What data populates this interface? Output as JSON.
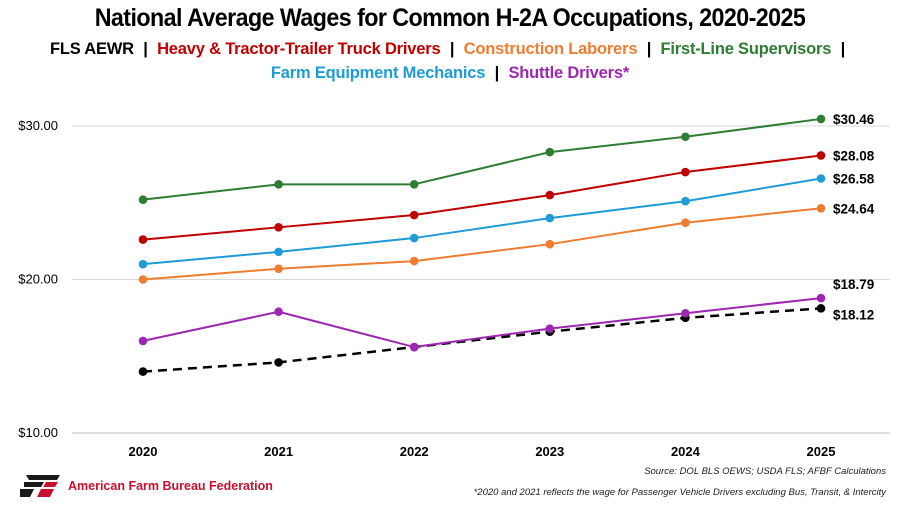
{
  "chart_data": {
    "type": "line",
    "title": "National Average Wages for Common H-2A Occupations, 2020-2025",
    "categories": [
      "2020",
      "2021",
      "2022",
      "2023",
      "2024",
      "2025"
    ],
    "ylim": [
      10,
      32
    ],
    "yticks": [
      10,
      20,
      30
    ],
    "ytick_labels": [
      "$10.00",
      "$20.00",
      "$30.00"
    ],
    "grid": true,
    "legend_placement": "top",
    "series": [
      {
        "name": "FLS AEWR",
        "color": "#000000",
        "dashed": true,
        "end_label": "$18.12",
        "values": [
          14.0,
          14.6,
          15.6,
          16.6,
          17.5,
          18.12
        ]
      },
      {
        "name": "Heavy & Tractor-Trailer Truck Drivers",
        "color": "#c00000",
        "dashed": false,
        "end_label": "$28.08",
        "values": [
          22.6,
          23.4,
          24.2,
          25.5,
          27.0,
          28.08
        ]
      },
      {
        "name": "Construction Laborers",
        "color": "#ed7d31",
        "dashed": false,
        "end_label": "$24.64",
        "values": [
          20.0,
          20.7,
          21.2,
          22.3,
          23.7,
          24.64
        ]
      },
      {
        "name": "First-Line Supervisors",
        "color": "#2e7d32",
        "dashed": false,
        "end_label": "$30.46",
        "values": [
          25.2,
          26.2,
          26.2,
          28.3,
          29.3,
          30.46
        ]
      },
      {
        "name": "Farm Equipment Mechanics",
        "color": "#1f9bd7",
        "dashed": false,
        "end_label": "$26.58",
        "values": [
          21.0,
          21.8,
          22.7,
          24.0,
          25.1,
          26.58
        ]
      },
      {
        "name": "Shuttle Drivers*",
        "color": "#9c27b0",
        "dashed": false,
        "end_label": "$18.79",
        "values": [
          16.0,
          17.9,
          15.6,
          16.8,
          17.8,
          18.79
        ]
      }
    ]
  },
  "legend": {
    "separator": "|",
    "line1": [
      {
        "label": "FLS AEWR",
        "color": "#000000"
      },
      {
        "label": "Heavy & Tractor-Trailer Truck Drivers",
        "color": "#c00000"
      },
      {
        "label": "Construction Laborers",
        "color": "#ed7d31"
      },
      {
        "label": "First-Line Supervisors",
        "color": "#2e7d32"
      }
    ],
    "line2": [
      {
        "label": "Farm Equipment Mechanics",
        "color": "#1f9bd7"
      },
      {
        "label": "Shuttle Drivers*",
        "color": "#9c27b0"
      }
    ]
  },
  "source": "Source: DOL BLS OEWS; USDA FLS; AFBF Calculations",
  "footnote": "*2020 and 2021 reflects the wage for Passenger Vehicle Drivers excluding Bus, Transit, & Intercity",
  "brand": {
    "name": "American Farm Bureau Federation",
    "mark": "FB",
    "color": "#c8102e"
  }
}
